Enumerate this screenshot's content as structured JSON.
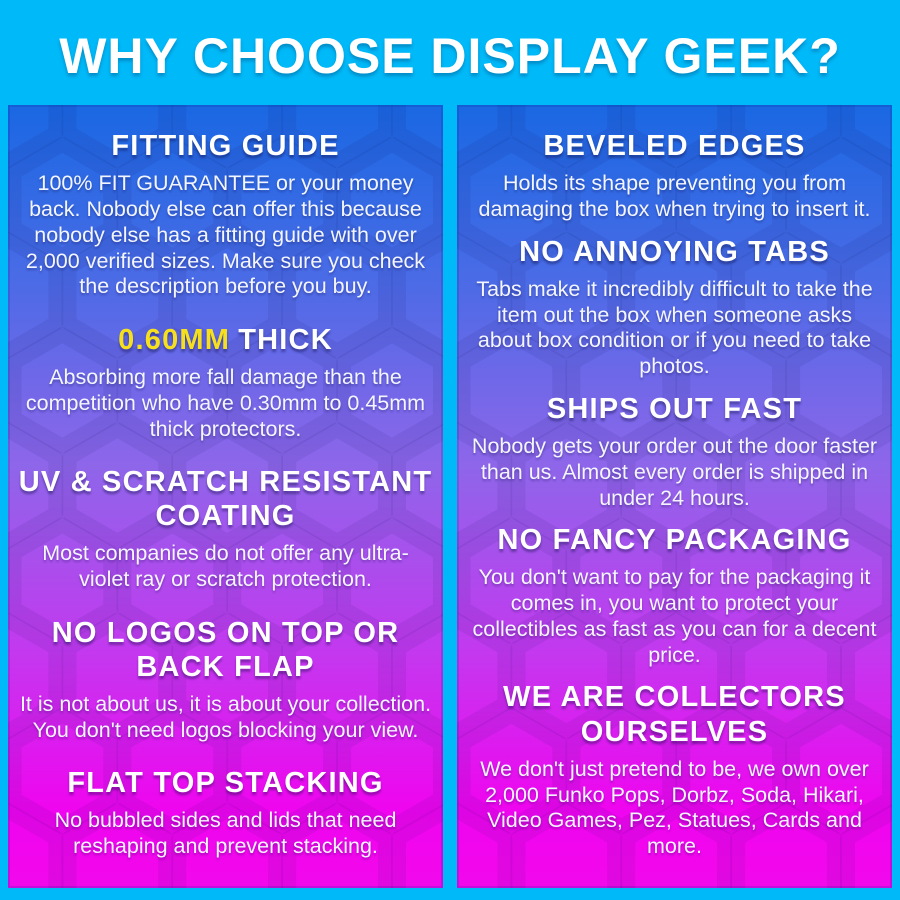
{
  "banner": {
    "title": "WHY CHOOSE DISPLAY GEEK?"
  },
  "colors": {
    "banner_bg": "#00B9F8",
    "panel_gradient_top": "#1A68E3",
    "panel_gradient_mid": "#8E66EA",
    "panel_gradient_bottom": "#F308EC",
    "heading_text": "#FFFFFF",
    "highlight_yellow": "#F6E01E"
  },
  "columns": {
    "left": {
      "sections": [
        {
          "heading": "FITTING GUIDE",
          "body": "100% FIT GUARANTEE or your money back. Nobody else can offer this because nobody else has a fitting guide with over 2,000 verified sizes. Make sure you check the description before you buy."
        },
        {
          "heading_highlight": "0.60MM",
          "heading_rest": "THICK",
          "body": "Absorbing more fall damage than the competition who have 0.30mm to 0.45mm thick protectors."
        },
        {
          "heading": "UV & SCRATCH RESISTANT COATING",
          "body": "Most companies do not offer any ultra-violet ray or scratch protection."
        },
        {
          "heading": "NO LOGOS ON TOP OR BACK FLAP",
          "body": "It is not about us, it is about your collection. You don't need logos blocking your view."
        },
        {
          "heading": "FLAT TOP STACKING",
          "body": "No bubbled sides and lids that need reshaping and prevent stacking."
        }
      ]
    },
    "right": {
      "sections": [
        {
          "heading": "BEVELED EDGES",
          "body": "Holds its shape preventing you from damaging the box when trying to insert it."
        },
        {
          "heading": "NO ANNOYING TABS",
          "body": "Tabs make it incredibly difficult to take the item out the box when someone asks about box condition or if you need to take photos."
        },
        {
          "heading": "SHIPS OUT FAST",
          "body": "Nobody gets your order out the door faster than us. Almost every order is shipped in under 24 hours."
        },
        {
          "heading": "NO FANCY PACKAGING",
          "body": "You don't want to pay for the packaging it comes in, you want to protect your collectibles as fast as you can for a decent price."
        },
        {
          "heading": "WE ARE COLLECTORS OURSELVES",
          "body": "We don't just pretend to be, we own over 2,000 Funko Pops, Dorbz, Soda, Hikari, Video Games, Pez, Statues, Cards and more."
        }
      ]
    }
  }
}
